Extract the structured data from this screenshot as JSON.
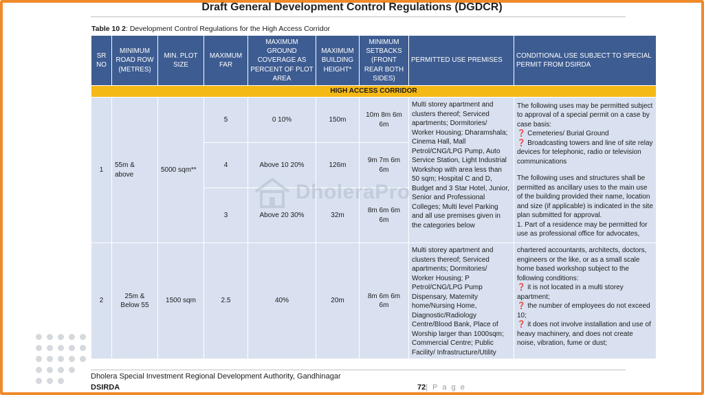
{
  "header": {
    "title": "Draft General Development Control Regulations (DGDCR)"
  },
  "caption": {
    "label": "Table 10 2",
    "text": ": Development Control Regulations for the High Access Corridor"
  },
  "table": {
    "headers": {
      "sr": "SR NO",
      "road": "MINIMUM ROAD ROW (METRES)",
      "plot": "MIN. PLOT SIZE",
      "far": "MAXIMUM FAR",
      "coverage": "MAXIMUM GROUND COVERAGE AS PERCENT OF PLOT AREA",
      "height": "MAXIMUM BUILDING HEIGHT*",
      "setbacks": "MINIMUM SETBACKS (FRONT REAR BOTH SIDES)",
      "permitted": "PERMITTED USE PREMISES",
      "conditional": "CONDITIONAL USE SUBJECT TO SPECIAL PERMIT FROM DSIRDA"
    },
    "band": "HIGH ACCESS CORRIDOR",
    "row1": {
      "sr": "1",
      "road": "55m & above",
      "plot": "5000 sqm**",
      "sub": [
        {
          "far": "5",
          "coverage": "0 10%",
          "height": "150m",
          "setbacks": "10m 8m 6m 6m"
        },
        {
          "far": "4",
          "coverage": "Above 10 20%",
          "height": "126m",
          "setbacks": "9m 7m 6m 6m"
        },
        {
          "far": "3",
          "coverage": "Above 20 30%",
          "height": "32m",
          "setbacks": "8m 6m 6m 6m"
        }
      ],
      "permitted": [
        "Multi storey apartment and clusters thereof; Serviced apartments; Dormitories/ Worker Housing; Dharamshala;",
        "Cinema Hall, Mall Petrol/CNG/LPG Pump, Auto Service Station, Light Industrial Workshop with area less than 50 sqm; Hospital C and D, Budget and 3 Star Hotel, Junior, Senior and Professional Colleges; Multi level Parking and all use premises given in the categories below"
      ],
      "conditional": [
        "The following uses may be permitted subject to approval of a special permit on a case by case basis:",
        "❓ Cemeteries/ Burial Ground",
        "❓ Broadcasting towers and line of  site relay devices for telephonic,  radio or television  communications",
        "",
        "The following uses and structures shall be permitted as ancillary uses to the main use of the building provided their name, location and size (if applicable) is indicated in the site plan submitted for approval.",
        "1. Part of a residence may be  permitted for use as professional  office for advocates,"
      ]
    },
    "row2": {
      "sr": "2",
      "road": "25m & Below 55",
      "plot": "1500 sqm",
      "far": "2.5",
      "coverage": "40%",
      "height": "20m",
      "setbacks": "8m 6m 6m 6m",
      "permitted": [
        "Multi storey apartment and clusters thereof; Serviced apartments; Dormitories/ Worker Housing; P Petrol/CNG/LPG Pump",
        "Dispensary, Maternity home/Nursing Home, Diagnostic/Radiology Centre/Blood Bank, Place of Worship larger than 1000sqm; Commercial Centre; Public Facility/ Infrastructure/Utility"
      ],
      "conditional": [
        " chartered accountants,  architects, doctors, engineers or  the like, or as a small scale home  based workshop subject to the  following conditions:",
        "❓ it is not located in a multi storey apartment;",
        "❓ the number of employees do not exceed 10;",
        "❓ it does not involve installation  and use of heavy machinery, and  does not create noise, vibration,  fume or dust;"
      ]
    }
  },
  "watermark": {
    "text": "DholeraPro"
  },
  "footer": {
    "authority": "Dholera Special Investment Regional Development Authority, Gandhinagar",
    "org": "DSIRDA",
    "page_number": "72",
    "page_label": "| P a g e"
  },
  "colors": {
    "frame": "#ef8a2a",
    "header_bg": "#3d5c91",
    "band_bg": "#f5b916",
    "cell_bg": "#d9e1f0"
  }
}
